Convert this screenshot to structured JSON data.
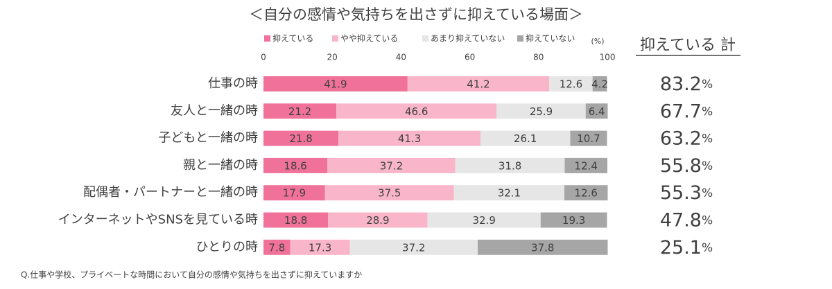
{
  "chart_data": {
    "type": "stacked_bar_horizontal",
    "title": "＜自分の感情や気持ちを出さずに抑えている場面＞",
    "x_unit_label": "(%)",
    "categories": [
      "仕事の時",
      "友人と一緒の時",
      "子どもと一緒の時",
      "親と一緒の時",
      "配偶者・パートナーと一緒の時",
      "インターネットやSNSを見ている時",
      "ひとりの時"
    ],
    "series": [
      {
        "name": "抑えている",
        "color": "#f0729a",
        "values": [
          41.9,
          21.2,
          21.8,
          18.6,
          17.9,
          18.8,
          7.8
        ]
      },
      {
        "name": "やや抑えている",
        "color": "#f9b6cb",
        "values": [
          41.2,
          46.6,
          41.3,
          37.2,
          37.5,
          28.9,
          17.3
        ]
      },
      {
        "name": "あまり抑えていない",
        "color": "#e6e6e6",
        "values": [
          12.6,
          25.9,
          26.1,
          31.8,
          32.1,
          32.9,
          37.2
        ]
      },
      {
        "name": "抑えていない",
        "color": "#a6a6a6",
        "values": [
          4.2,
          6.4,
          10.7,
          12.4,
          12.6,
          19.3,
          37.8
        ]
      }
    ],
    "xlim": [
      0,
      100
    ],
    "xticks": [
      0,
      20,
      40,
      60,
      80,
      100
    ],
    "grid": false,
    "legend": "top",
    "totals": {
      "header": "抑えている 計",
      "values": [
        83.2,
        67.7,
        63.2,
        55.8,
        55.3,
        47.8,
        25.1
      ],
      "unit": "%"
    },
    "footnote": "Q.仕事や学校、プライベートな時間において自分の感情や気持ちを出さずに抑えていますか"
  }
}
